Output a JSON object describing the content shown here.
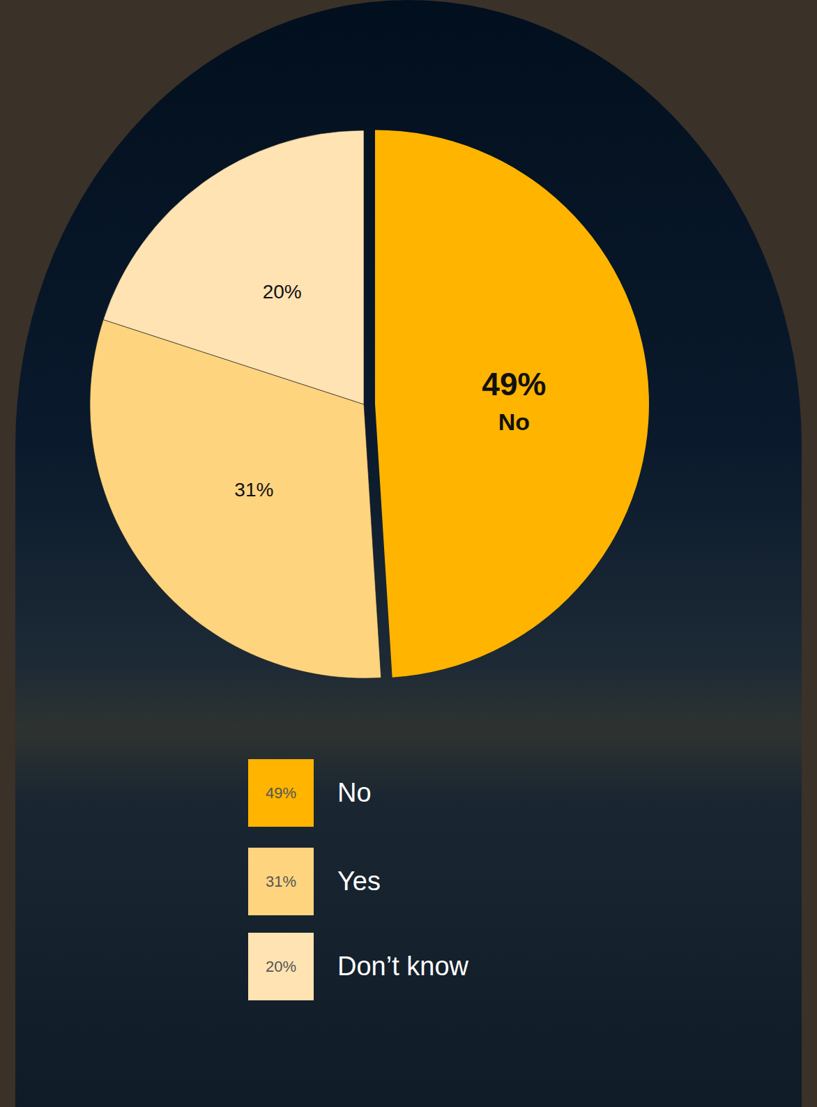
{
  "chart_data": {
    "type": "pie",
    "categories": [
      "No",
      "Yes",
      "Don’t know"
    ],
    "values": [
      49,
      31,
      20
    ],
    "value_labels": [
      "49%",
      "31%",
      "20%"
    ],
    "colors": [
      "#ffb400",
      "#ffd47f",
      "#ffe3b3"
    ],
    "legend": "bottom",
    "data_labels": true
  }
}
